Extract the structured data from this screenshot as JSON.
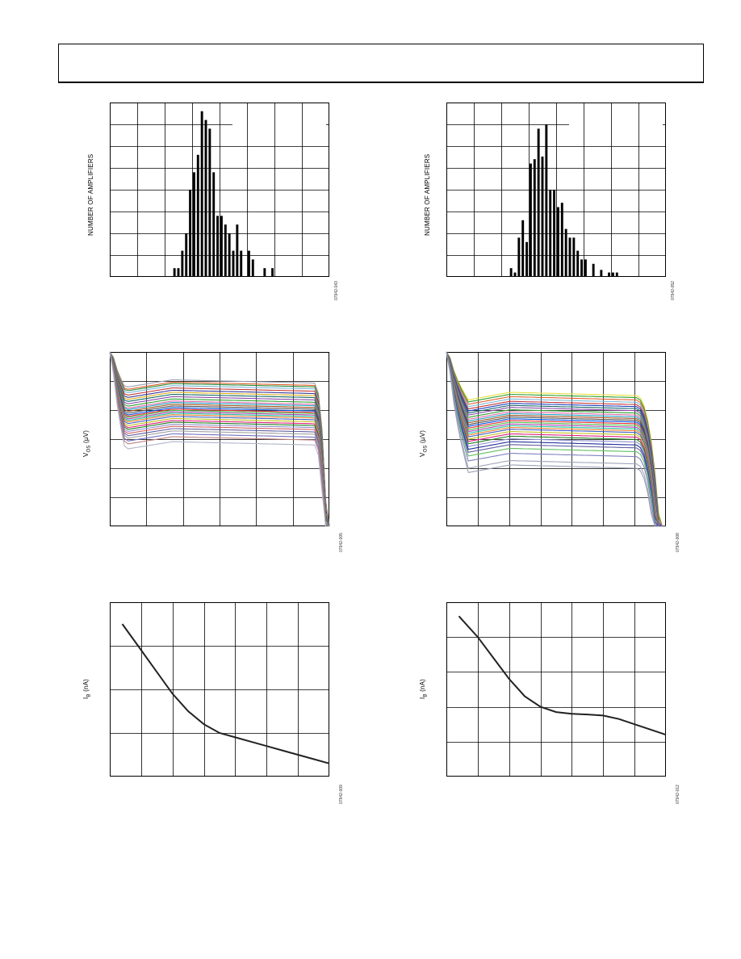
{
  "page": {
    "header_text": ""
  },
  "chart_data": [
    {
      "type": "bar",
      "ylabel": "NUMBER OF AMPLIFIERS",
      "fig_id": "07942-043",
      "bin_values": [
        0,
        0,
        0,
        0,
        0,
        0,
        0,
        0,
        0,
        0,
        0,
        0,
        0,
        0,
        0,
        0,
        1,
        1,
        3,
        5,
        10,
        12,
        14,
        19,
        18,
        17,
        12,
        7,
        7,
        6,
        5,
        3,
        6,
        3,
        0,
        3,
        2,
        0,
        0,
        1,
        0,
        1,
        0,
        0,
        0,
        0,
        0,
        0,
        0,
        0,
        0,
        0,
        0,
        0,
        0,
        0
      ],
      "ylim": [
        0,
        20
      ],
      "bar_color": "#000000"
    },
    {
      "type": "bar",
      "ylabel": "NUMBER OF AMPLIFIERS",
      "fig_id": "07942-052",
      "bin_values": [
        0,
        0,
        0,
        0,
        0,
        0,
        0,
        0,
        0,
        0,
        0,
        0,
        0,
        0,
        0,
        0,
        1,
        0.5,
        4.5,
        6.5,
        4,
        13,
        13.5,
        17,
        13.8,
        17.5,
        10,
        10,
        8,
        8.5,
        5.5,
        4.5,
        4.5,
        3,
        2,
        2,
        0,
        1.5,
        0,
        0.8,
        0,
        0.5,
        0.5,
        0.5,
        0,
        0,
        0,
        0,
        0,
        0,
        0,
        0,
        0,
        0,
        0,
        0
      ],
      "ylim": [
        0,
        20
      ],
      "bar_color": "#000000"
    },
    {
      "type": "line",
      "ylabel_main": "V",
      "ylabel_sub": "OS",
      "ylabel_unit": "(µV)",
      "fig_id": "07942-005",
      "ylim": [
        -6,
        0
      ],
      "xlim": [
        0,
        1
      ],
      "series": [
        {
          "level": -0.92,
          "color": "#9aa0b4"
        },
        {
          "level": -1.0,
          "color": "#e0602a"
        },
        {
          "level": -1.05,
          "color": "#2a8a3a"
        },
        {
          "level": -1.12,
          "color": "#7ab8d8"
        },
        {
          "level": -1.2,
          "color": "#c43a3a"
        },
        {
          "level": -1.28,
          "color": "#3a3a9a"
        },
        {
          "level": -1.35,
          "color": "#d8b020"
        },
        {
          "level": -1.42,
          "color": "#1a6a6a"
        },
        {
          "level": -1.5,
          "color": "#8a4aa8"
        },
        {
          "level": -1.58,
          "color": "#30a030"
        },
        {
          "level": -1.65,
          "color": "#e06aa8"
        },
        {
          "level": -1.7,
          "color": "#20a0c0"
        },
        {
          "level": -1.76,
          "color": "#a05020"
        },
        {
          "level": -1.82,
          "color": "#505050"
        },
        {
          "level": -1.88,
          "color": "#0050e0"
        },
        {
          "level": -1.93,
          "color": "#e03030"
        },
        {
          "level": -1.97,
          "color": "#50c050"
        },
        {
          "level": -2.02,
          "color": "#b040b0"
        },
        {
          "level": -2.07,
          "color": "#20c0a0"
        },
        {
          "level": -2.12,
          "color": "#f08030"
        },
        {
          "level": -2.18,
          "color": "#4060c0"
        },
        {
          "level": -2.25,
          "color": "#c0c020"
        },
        {
          "level": -2.32,
          "color": "#e02080"
        },
        {
          "level": -2.38,
          "color": "#208020"
        },
        {
          "level": -2.45,
          "color": "#9090d0"
        },
        {
          "level": -2.52,
          "color": "#d06060"
        },
        {
          "level": -2.6,
          "color": "#6060a0"
        },
        {
          "level": -2.68,
          "color": "#a0a0a0"
        },
        {
          "level": -2.78,
          "color": "#7070c0"
        },
        {
          "level": -2.88,
          "color": "#c08080"
        },
        {
          "level": -3.05,
          "color": "#b0b4c8"
        }
      ]
    },
    {
      "type": "line",
      "ylabel_main": "V",
      "ylabel_sub": "OS",
      "ylabel_unit": "(µV)",
      "fig_id": "07942-008",
      "ylim": [
        -6,
        0
      ],
      "xlim": [
        0,
        1
      ],
      "series": [
        {
          "level": -1.35,
          "color": "#e8e040"
        },
        {
          "level": -1.42,
          "color": "#30a030"
        },
        {
          "level": -1.5,
          "color": "#e06030"
        },
        {
          "level": -1.58,
          "color": "#7ab8d8"
        },
        {
          "level": -1.66,
          "color": "#c43a3a"
        },
        {
          "level": -1.73,
          "color": "#2040c0"
        },
        {
          "level": -1.8,
          "color": "#1a6a6a"
        },
        {
          "level": -1.87,
          "color": "#8a4aa8"
        },
        {
          "level": -1.95,
          "color": "#30a030"
        },
        {
          "level": -2.02,
          "color": "#e06aa8"
        },
        {
          "level": -2.08,
          "color": "#20a0c0"
        },
        {
          "level": -2.14,
          "color": "#a05020"
        },
        {
          "level": -2.2,
          "color": "#505050"
        },
        {
          "level": -2.26,
          "color": "#0050e0"
        },
        {
          "level": -2.32,
          "color": "#e03030"
        },
        {
          "level": -2.38,
          "color": "#50c050"
        },
        {
          "level": -2.44,
          "color": "#b040b0"
        },
        {
          "level": -2.5,
          "color": "#20c0a0"
        },
        {
          "level": -2.56,
          "color": "#f08030"
        },
        {
          "level": -2.62,
          "color": "#4060c0"
        },
        {
          "level": -2.7,
          "color": "#c0c020"
        },
        {
          "level": -2.78,
          "color": "#e02080"
        },
        {
          "level": -2.86,
          "color": "#208020"
        },
        {
          "level": -2.95,
          "color": "#9090d0"
        },
        {
          "level": -3.05,
          "color": "#2030a0"
        },
        {
          "level": -3.15,
          "color": "#6060a0"
        },
        {
          "level": -3.28,
          "color": "#60c060"
        },
        {
          "level": -3.45,
          "color": "#8080c0"
        },
        {
          "level": -3.7,
          "color": "#a0a4b8"
        },
        {
          "level": -3.85,
          "color": "#9aa0b4"
        }
      ]
    },
    {
      "type": "line",
      "ylabel_main": "I",
      "ylabel_sub": "B",
      "ylabel_unit": "(nA)",
      "fig_id": "07942-009",
      "xlim": [
        0,
        7
      ],
      "ylim": [
        0,
        4
      ],
      "series": [
        {
          "x": [
            0.4,
            0.9,
            1.5,
            2.0,
            2.5,
            3.0,
            3.5,
            4.0,
            4.5,
            5.0,
            5.5,
            6.0,
            6.5,
            7.0
          ],
          "y": [
            3.5,
            3.0,
            2.4,
            1.9,
            1.5,
            1.2,
            1.0,
            0.9,
            0.8,
            0.7,
            0.6,
            0.5,
            0.4,
            0.3
          ],
          "color": "#222222"
        }
      ]
    },
    {
      "type": "line",
      "ylabel_main": "I",
      "ylabel_sub": "B",
      "ylabel_unit": "(nA)",
      "fig_id": "07942-012",
      "xlim": [
        0,
        7
      ],
      "ylim": [
        0,
        5
      ],
      "series": [
        {
          "x": [
            0.4,
            1.0,
            1.5,
            2.0,
            2.5,
            3.0,
            3.5,
            4.0,
            4.5,
            5.0,
            5.5,
            6.0,
            6.5,
            7.0
          ],
          "y": [
            4.6,
            4.0,
            3.4,
            2.8,
            2.3,
            2.0,
            1.85,
            1.8,
            1.78,
            1.75,
            1.65,
            1.5,
            1.35,
            1.2
          ],
          "color": "#222222"
        }
      ]
    }
  ]
}
